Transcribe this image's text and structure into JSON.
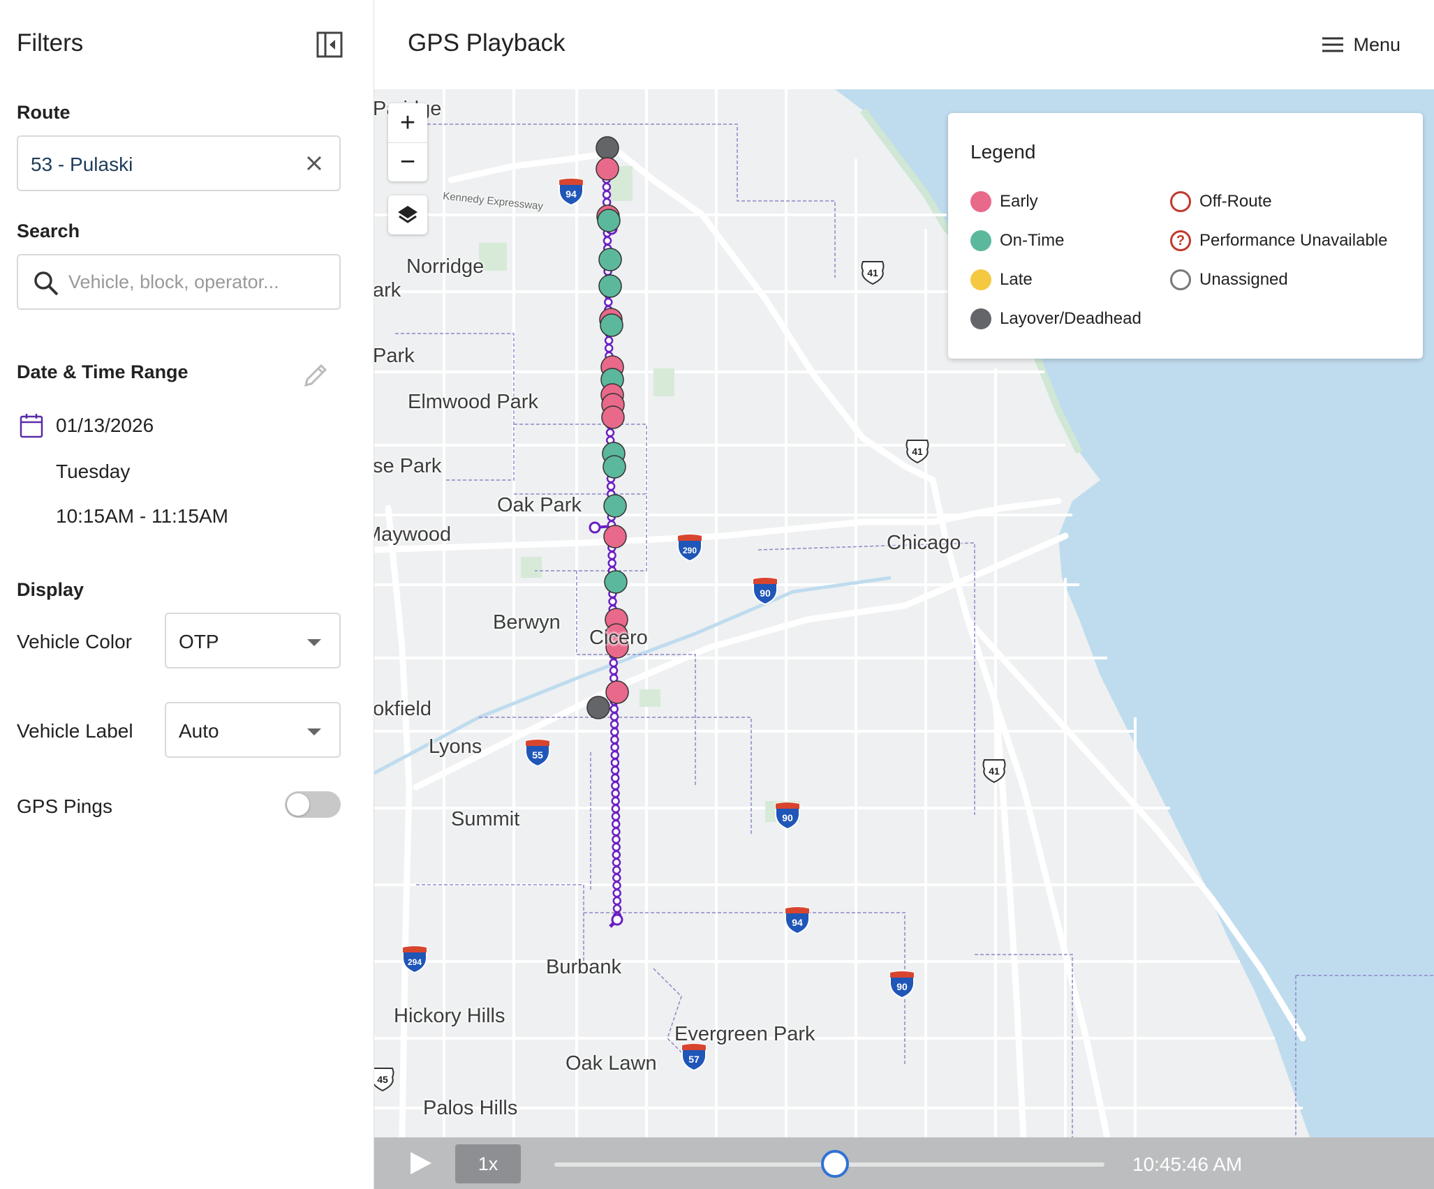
{
  "sidebar": {
    "title": "Filters",
    "route": {
      "label": "Route",
      "value": "53 - Pulaski"
    },
    "search": {
      "label": "Search",
      "placeholder": "Vehicle, block, operator..."
    },
    "datetime": {
      "label": "Date & Time Range",
      "date": "01/13/2026",
      "weekday": "Tuesday",
      "range": "10:15AM - 11:15AM"
    },
    "display": {
      "label": "Display",
      "vehicle_color": {
        "label": "Vehicle Color",
        "value": "OTP"
      },
      "vehicle_label": {
        "label": "Vehicle Label",
        "value": "Auto"
      },
      "gps_pings": {
        "label": "GPS Pings",
        "enabled": false
      }
    }
  },
  "header": {
    "title": "GPS Playback",
    "menu_label": "Menu"
  },
  "map": {
    "zoom_in": "+",
    "zoom_out": "−",
    "labels": [
      {
        "text": "Pa  idge"
      },
      {
        "text": "Norridge"
      },
      {
        "text": "ark"
      },
      {
        "text": "Park"
      },
      {
        "text": "Elmwood Park"
      },
      {
        "text": "se Park"
      },
      {
        "text": "Oak Park"
      },
      {
        "text": "Maywood"
      },
      {
        "text": "Chicago"
      },
      {
        "text": "Berwyn"
      },
      {
        "text": "Cicero"
      },
      {
        "text": "ookfield"
      },
      {
        "text": "Lyons"
      },
      {
        "text": "Summit"
      },
      {
        "text": "Burbank"
      },
      {
        "text": "Hickory Hills"
      },
      {
        "text": "Evergreen Park"
      },
      {
        "text": "Oak Lawn"
      },
      {
        "text": "Palos Hills"
      },
      {
        "text": "Kennedy Expressway"
      }
    ],
    "shields": [
      {
        "type": "interstate",
        "num": "94"
      },
      {
        "type": "us",
        "num": "41"
      },
      {
        "type": "us",
        "num": "41"
      },
      {
        "type": "interstate",
        "num": "290"
      },
      {
        "type": "interstate",
        "num": "90"
      },
      {
        "type": "interstate",
        "num": "55"
      },
      {
        "type": "us",
        "num": "41"
      },
      {
        "type": "interstate",
        "num": "90"
      },
      {
        "type": "interstate",
        "num": "94"
      },
      {
        "type": "interstate",
        "num": "294"
      },
      {
        "type": "interstate",
        "num": "90"
      },
      {
        "type": "interstate",
        "num": "57"
      },
      {
        "type": "us",
        "num": "45"
      }
    ]
  },
  "legend": {
    "title": "Legend",
    "items": [
      {
        "label": "Early",
        "color": "#e8698a",
        "style": "fill"
      },
      {
        "label": "On-Time",
        "color": "#5bb89c",
        "style": "fill"
      },
      {
        "label": "Late",
        "color": "#f5c842",
        "style": "fill"
      },
      {
        "label": "Layover/Deadhead",
        "color": "#646569",
        "style": "fill"
      },
      {
        "label": "Off-Route",
        "color": "#c0392b",
        "style": "ring"
      },
      {
        "label": "Performance Unavailable",
        "color": "#c0392b",
        "style": "question"
      },
      {
        "label": "Unassigned",
        "color": "#777777",
        "style": "ring"
      }
    ]
  },
  "vehicles": [
    {
      "status": "Layover/Deadhead"
    },
    {
      "status": "Early"
    },
    {
      "status": "Early"
    },
    {
      "status": "On-Time"
    },
    {
      "status": "On-Time"
    },
    {
      "status": "On-Time"
    },
    {
      "status": "Early"
    },
    {
      "status": "On-Time"
    },
    {
      "status": "Early"
    },
    {
      "status": "On-Time"
    },
    {
      "status": "Early"
    },
    {
      "status": "Early"
    },
    {
      "status": "Early"
    },
    {
      "status": "On-Time"
    },
    {
      "status": "On-Time"
    },
    {
      "status": "On-Time"
    },
    {
      "status": "Early"
    },
    {
      "status": "On-Time"
    },
    {
      "status": "Early"
    },
    {
      "status": "Early"
    },
    {
      "status": "Early"
    },
    {
      "status": "Early"
    },
    {
      "status": "Layover/Deadhead"
    }
  ],
  "playback": {
    "speed": "1x",
    "time": "10:45:46 AM",
    "progress": 0.51
  },
  "colors": {
    "route_line": "#6a1fc2",
    "accent": "#2f72d4",
    "water": "#bfdcee"
  }
}
